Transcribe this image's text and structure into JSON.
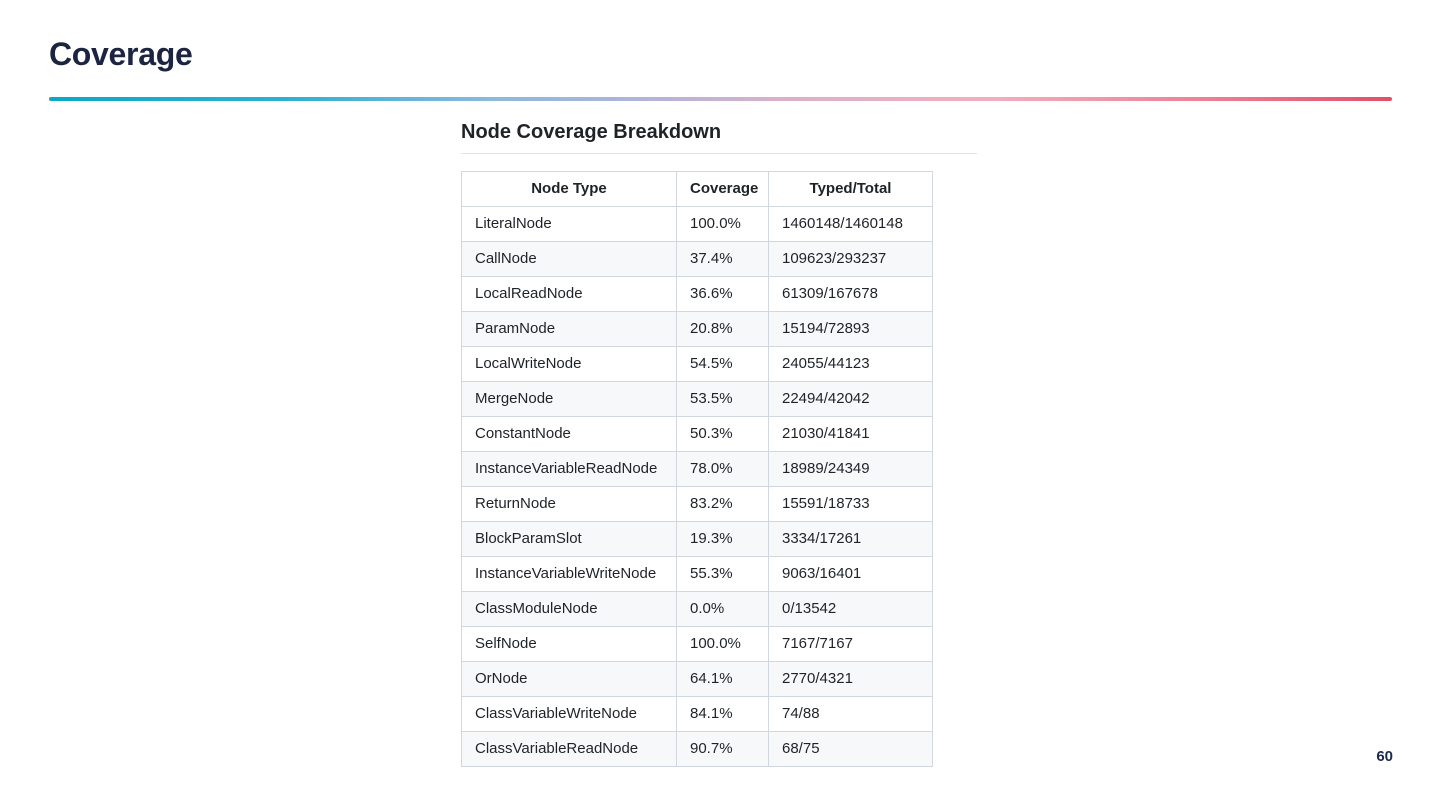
{
  "slide": {
    "title": "Coverage",
    "page_number": "60"
  },
  "section": {
    "heading": "Node Coverage Breakdown"
  },
  "colors": {
    "title_text": "#1b2440",
    "accent_gradient_start": "#09a8ca",
    "accent_gradient_mid": "#b4b3d9",
    "accent_gradient_end": "#e04f6a",
    "table_border": "#d0d7de",
    "table_alt_row_bg": "#f6f8fa",
    "table_text": "#1f2328"
  },
  "chart_data": {
    "type": "table",
    "title": "Node Coverage Breakdown",
    "columns": [
      "Node Type",
      "Coverage",
      "Typed/Total"
    ],
    "rows": [
      {
        "node_type": "LiteralNode",
        "coverage": "100.0%",
        "typed_total": "1460148/1460148"
      },
      {
        "node_type": "CallNode",
        "coverage": "37.4%",
        "typed_total": "109623/293237"
      },
      {
        "node_type": "LocalReadNode",
        "coverage": "36.6%",
        "typed_total": "61309/167678"
      },
      {
        "node_type": "ParamNode",
        "coverage": "20.8%",
        "typed_total": "15194/72893"
      },
      {
        "node_type": "LocalWriteNode",
        "coverage": "54.5%",
        "typed_total": "24055/44123"
      },
      {
        "node_type": "MergeNode",
        "coverage": "53.5%",
        "typed_total": "22494/42042"
      },
      {
        "node_type": "ConstantNode",
        "coverage": "50.3%",
        "typed_total": "21030/41841"
      },
      {
        "node_type": "InstanceVariableReadNode",
        "coverage": "78.0%",
        "typed_total": "18989/24349"
      },
      {
        "node_type": "ReturnNode",
        "coverage": "83.2%",
        "typed_total": "15591/18733"
      },
      {
        "node_type": "BlockParamSlot",
        "coverage": "19.3%",
        "typed_total": "3334/17261"
      },
      {
        "node_type": "InstanceVariableWriteNode",
        "coverage": "55.3%",
        "typed_total": "9063/16401"
      },
      {
        "node_type": "ClassModuleNode",
        "coverage": "0.0%",
        "typed_total": "0/13542"
      },
      {
        "node_type": "SelfNode",
        "coverage": "100.0%",
        "typed_total": "7167/7167"
      },
      {
        "node_type": "OrNode",
        "coverage": "64.1%",
        "typed_total": "2770/4321"
      },
      {
        "node_type": "ClassVariableWriteNode",
        "coverage": "84.1%",
        "typed_total": "74/88"
      },
      {
        "node_type": "ClassVariableReadNode",
        "coverage": "90.7%",
        "typed_total": "68/75"
      }
    ]
  }
}
